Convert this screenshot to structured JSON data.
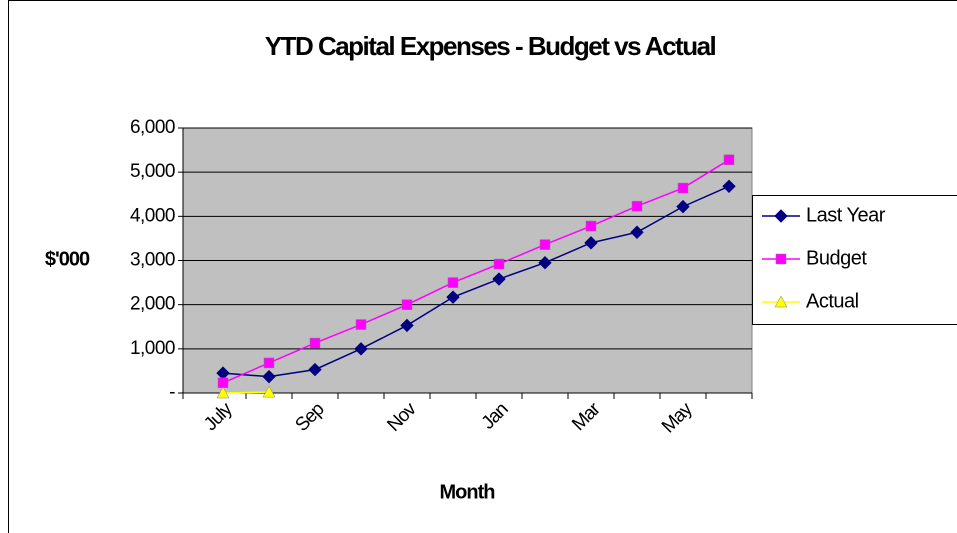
{
  "chart_data": {
    "type": "line",
    "title": "YTD Capital Expenses - Budget vs Actual",
    "x_label": "Month",
    "y_label": "$'000",
    "categories": [
      "July",
      null,
      "Sep",
      null,
      "Nov",
      null,
      "Jan",
      null,
      "Mar",
      null,
      "May",
      null
    ],
    "series": [
      {
        "name": "Last Year",
        "color": "#000080",
        "marker": "diamond",
        "values": [
          450,
          370,
          530,
          1000,
          1530,
          2170,
          2580,
          2950,
          3400,
          3640,
          4220,
          4680
        ]
      },
      {
        "name": "Budget",
        "color": "#ff00ff",
        "marker": "square",
        "values": [
          230,
          680,
          1130,
          1550,
          2000,
          2500,
          2920,
          3360,
          3780,
          4230,
          4640,
          5280
        ]
      },
      {
        "name": "Actual",
        "color": "#ffff00",
        "marker": "triangle",
        "values": [
          0,
          20,
          null,
          null,
          null,
          null,
          null,
          null,
          null,
          null,
          null,
          null
        ]
      }
    ],
    "ylim": [
      0,
      6000
    ],
    "yticks": [
      {
        "value": 0,
        "label": "-"
      },
      {
        "value": 1000,
        "label": "1,000"
      },
      {
        "value": 2000,
        "label": "2,000"
      },
      {
        "value": 3000,
        "label": "3,000"
      },
      {
        "value": 4000,
        "label": "4,000"
      },
      {
        "value": 5000,
        "label": "5,000"
      },
      {
        "value": 6000,
        "label": "6,000"
      }
    ],
    "grid": true,
    "legend": "right"
  }
}
